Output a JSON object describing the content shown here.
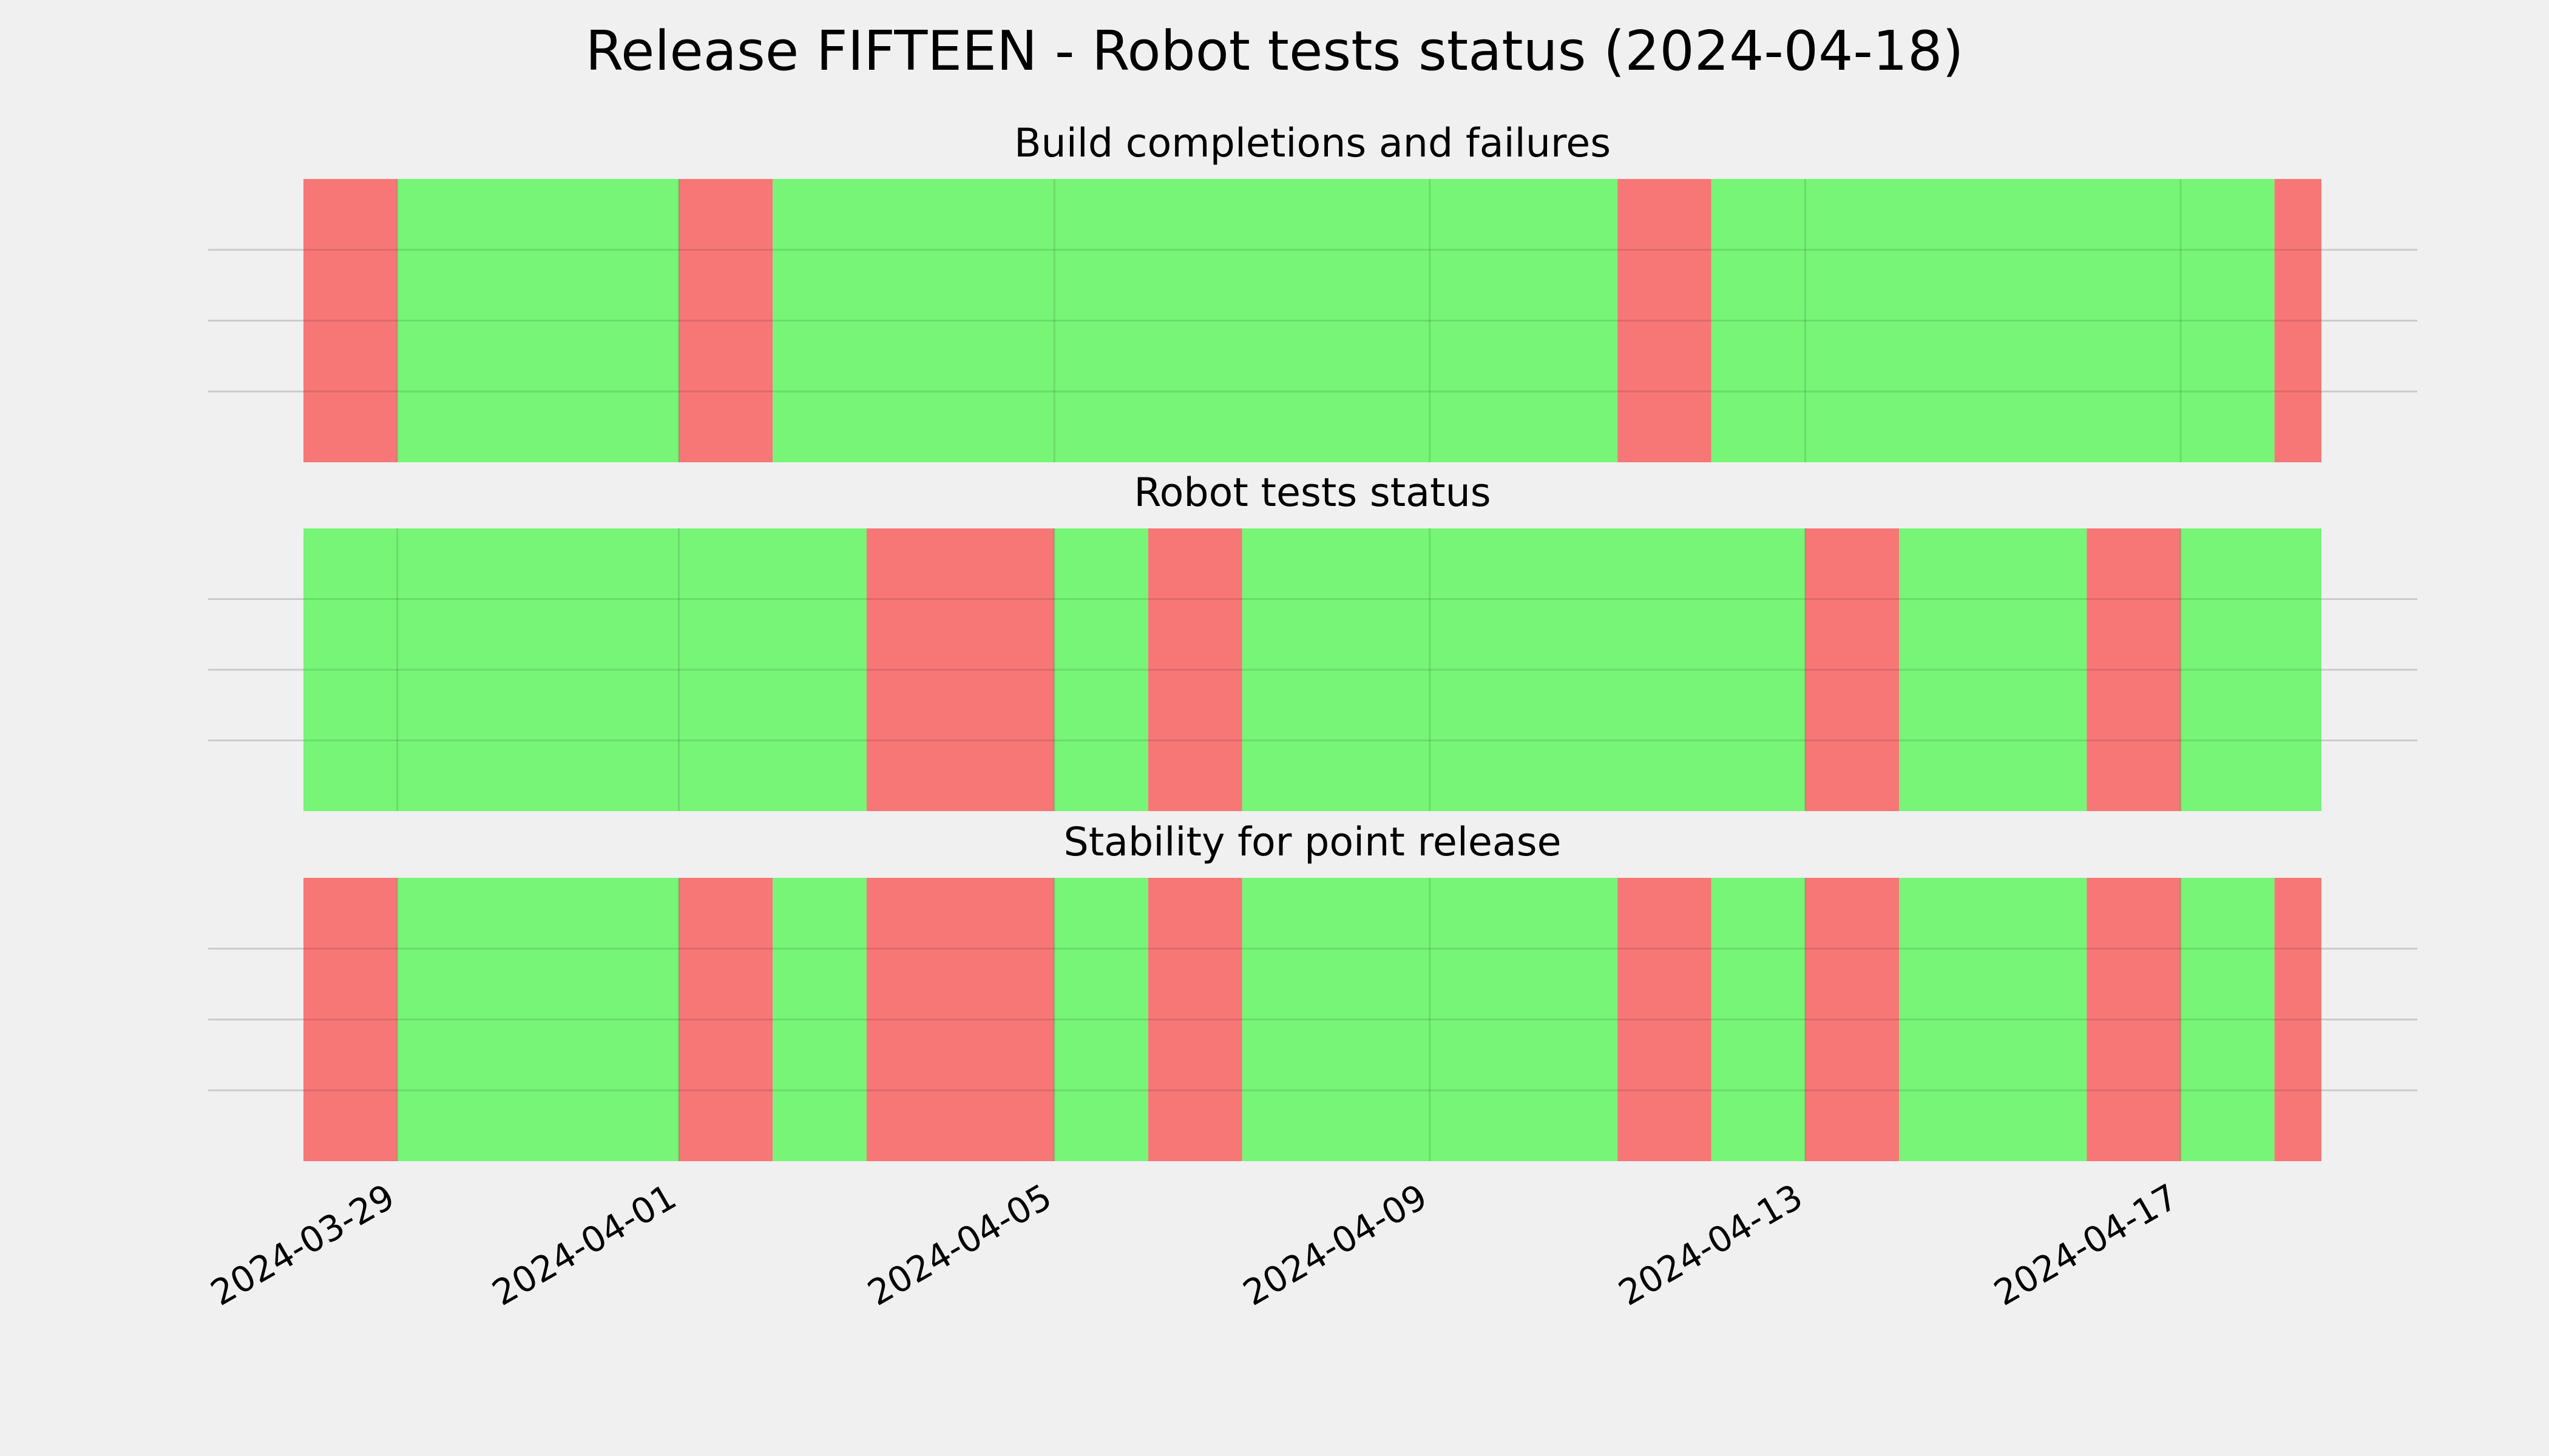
{
  "figure": {
    "title": "Release FIFTEEN - Robot tests status (2024-04-18)",
    "background_color": "#f0f0f0"
  },
  "chart_data": {
    "type": "status-timeline",
    "x_axis": {
      "type": "date",
      "range": [
        "2024-03-28",
        "2024-04-18T12:00"
      ],
      "ticks": [
        "2024-03-29",
        "2024-04-01",
        "2024-04-05",
        "2024-04-09",
        "2024-04-13",
        "2024-04-17"
      ],
      "tick_labels": [
        "2024-03-29",
        "2024-04-01",
        "2024-04-05",
        "2024-04-09",
        "2024-04-13",
        "2024-04-17"
      ]
    },
    "colors": {
      "pass": "#76f577",
      "fail": "#f77777"
    },
    "panels": [
      {
        "title": "Build completions and failures",
        "segments": [
          {
            "start": "2024-03-28",
            "end": "2024-03-29",
            "status": "fail"
          },
          {
            "start": "2024-03-29",
            "end": "2024-04-01",
            "status": "pass"
          },
          {
            "start": "2024-04-01",
            "end": "2024-04-02",
            "status": "fail"
          },
          {
            "start": "2024-04-02",
            "end": "2024-04-11",
            "status": "pass"
          },
          {
            "start": "2024-04-11",
            "end": "2024-04-12",
            "status": "fail"
          },
          {
            "start": "2024-04-12",
            "end": "2024-04-18",
            "status": "pass"
          },
          {
            "start": "2024-04-18",
            "end": "2024-04-18T12:00",
            "status": "fail"
          }
        ]
      },
      {
        "title": "Robot tests status",
        "segments": [
          {
            "start": "2024-03-28",
            "end": "2024-04-03",
            "status": "pass"
          },
          {
            "start": "2024-04-03",
            "end": "2024-04-05",
            "status": "fail"
          },
          {
            "start": "2024-04-05",
            "end": "2024-04-06",
            "status": "pass"
          },
          {
            "start": "2024-04-06",
            "end": "2024-04-07",
            "status": "fail"
          },
          {
            "start": "2024-04-07",
            "end": "2024-04-13",
            "status": "fail-free"
          },
          {
            "start": "2024-04-13",
            "end": "2024-04-14",
            "status": "fail"
          },
          {
            "start": "2024-04-14",
            "end": "2024-04-16",
            "status": "pass"
          },
          {
            "start": "2024-04-16",
            "end": "2024-04-17",
            "status": "fail"
          },
          {
            "start": "2024-04-17",
            "end": "2024-04-18T12:00",
            "status": "pass"
          }
        ]
      },
      {
        "title": "Stability for point release",
        "segments": [
          {
            "start": "2024-03-28",
            "end": "2024-03-29",
            "status": "fail"
          },
          {
            "start": "2024-03-29",
            "end": "2024-04-01",
            "status": "pass"
          },
          {
            "start": "2024-04-01",
            "end": "2024-04-02",
            "status": "fail"
          },
          {
            "start": "2024-04-02",
            "end": "2024-04-03",
            "status": "pass"
          },
          {
            "start": "2024-04-03",
            "end": "2024-04-05",
            "status": "fail"
          },
          {
            "start": "2024-04-05",
            "end": "2024-04-06",
            "status": "pass"
          },
          {
            "start": "2024-04-06",
            "end": "2024-04-07",
            "status": "fail"
          },
          {
            "start": "2024-04-07",
            "end": "2024-04-11",
            "status": "pass"
          },
          {
            "start": "2024-04-11",
            "end": "2024-04-12",
            "status": "fail"
          },
          {
            "start": "2024-04-12",
            "end": "2024-04-13",
            "status": "pass"
          },
          {
            "start": "2024-04-13",
            "end": "2024-04-14",
            "status": "fail"
          },
          {
            "start": "2024-04-14",
            "end": "2024-04-16",
            "status": "pass"
          },
          {
            "start": "2024-04-16",
            "end": "2024-04-17",
            "status": "fail"
          },
          {
            "start": "2024-04-17",
            "end": "2024-04-18",
            "status": "pass"
          },
          {
            "start": "2024-04-18",
            "end": "2024-04-18T12:00",
            "status": "fail"
          }
        ]
      }
    ],
    "grid": {
      "vertical_at_ticks": true,
      "horizontal_lines_per_panel": 3
    },
    "legend": "none"
  }
}
